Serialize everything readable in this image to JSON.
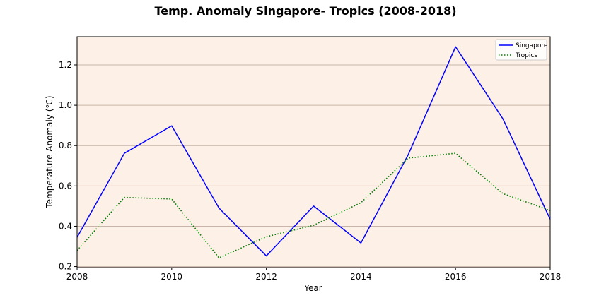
{
  "chart_data": {
    "type": "line",
    "title": "Temp. Anomaly Singapore- Tropics (2008-2018)",
    "xlabel": "Year",
    "ylabel": "Temperature Anomaly (℃)",
    "x": [
      2008,
      2009,
      2010,
      2011,
      2012,
      2013,
      2014,
      2015,
      2016,
      2017,
      2018
    ],
    "xlim": [
      2008,
      2018
    ],
    "ylim": [
      0.195,
      1.34
    ],
    "xticks": [
      2008,
      2010,
      2012,
      2014,
      2016,
      2018
    ],
    "yticks": [
      0.2,
      0.4,
      0.6,
      0.8,
      1.0,
      1.2
    ],
    "xtick_labels": [
      "2008",
      "2010",
      "2012",
      "2014",
      "2016",
      "2018"
    ],
    "ytick_labels": [
      "0.2",
      "0.4",
      "0.6",
      "0.8",
      "1.0",
      "1.2"
    ],
    "grid": "horizontal",
    "legend_position": "top-right",
    "background_color": "#fdf0e6",
    "grid_color": "#c8b4a8",
    "series": [
      {
        "name": "Singapore",
        "color": "#0000ff",
        "style": "solid",
        "values": [
          0.345,
          0.762,
          0.898,
          0.49,
          0.253,
          0.5,
          0.317,
          0.755,
          1.29,
          0.933,
          0.435
        ]
      },
      {
        "name": "Tropics",
        "color": "#008000",
        "style": "dotted",
        "values": [
          0.28,
          0.543,
          0.535,
          0.243,
          0.348,
          0.405,
          0.517,
          0.738,
          0.762,
          0.562,
          0.478
        ]
      }
    ]
  }
}
